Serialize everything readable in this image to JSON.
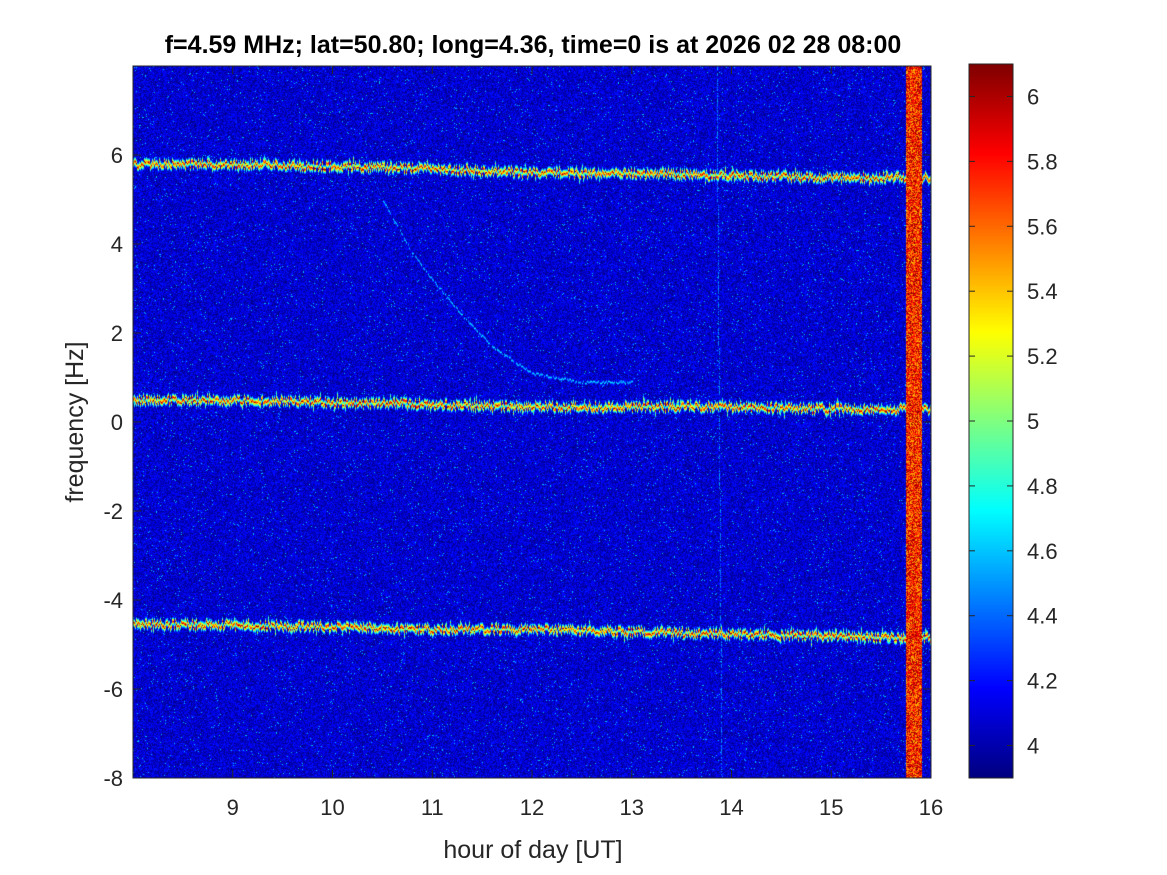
{
  "chart_data": {
    "type": "heatmap",
    "title": "f=4.59 MHz;  lat=50.80; long=4.36, time=0 is at 2026 02 28 08:00",
    "xlabel": "hour of day [UT]",
    "ylabel": "frequency [Hz]",
    "xlim": [
      8.0,
      16.0
    ],
    "ylim": [
      -8,
      8
    ],
    "x_ticks": [
      9,
      10,
      11,
      12,
      13,
      14,
      15,
      16
    ],
    "y_ticks": [
      -8,
      -6,
      -4,
      -2,
      0,
      2,
      4,
      6
    ],
    "colormap": "jet",
    "clim": [
      3.9,
      6.1
    ],
    "colorbar_ticks": [
      4,
      4.2,
      4.4,
      4.6,
      4.8,
      5,
      5.2,
      5.4,
      5.6,
      5.8,
      6
    ],
    "background_level": 4.0,
    "grid": false,
    "features": [
      {
        "kind": "horizontal-trace",
        "level": 6.0,
        "points": [
          [
            8.0,
            5.8
          ],
          [
            9.0,
            5.8
          ],
          [
            10.0,
            5.75
          ],
          [
            11.0,
            5.7
          ],
          [
            12.0,
            5.6
          ],
          [
            13.0,
            5.6
          ],
          [
            14.0,
            5.55
          ],
          [
            15.0,
            5.5
          ],
          [
            16.0,
            5.5
          ]
        ]
      },
      {
        "kind": "horizontal-trace",
        "level": 6.0,
        "points": [
          [
            8.0,
            0.5
          ],
          [
            9.0,
            0.5
          ],
          [
            10.0,
            0.45
          ],
          [
            11.0,
            0.4
          ],
          [
            12.0,
            0.35
          ],
          [
            13.0,
            0.35
          ],
          [
            14.0,
            0.35
          ],
          [
            15.0,
            0.3
          ],
          [
            16.0,
            0.3
          ]
        ]
      },
      {
        "kind": "horizontal-trace",
        "level": 6.0,
        "points": [
          [
            8.0,
            -4.55
          ],
          [
            9.0,
            -4.55
          ],
          [
            10.0,
            -4.6
          ],
          [
            11.0,
            -4.65
          ],
          [
            12.0,
            -4.65
          ],
          [
            13.0,
            -4.7
          ],
          [
            14.0,
            -4.75
          ],
          [
            15.0,
            -4.8
          ],
          [
            16.0,
            -4.85
          ]
        ]
      },
      {
        "kind": "doppler-trace",
        "level": 4.7,
        "points": [
          [
            10.5,
            5.0
          ],
          [
            10.8,
            3.8
          ],
          [
            11.0,
            3.2
          ],
          [
            11.3,
            2.4
          ],
          [
            11.6,
            1.7
          ],
          [
            12.0,
            1.1
          ],
          [
            12.5,
            0.9
          ],
          [
            13.0,
            0.9
          ]
        ]
      },
      {
        "kind": "faint-trace",
        "level": 4.35,
        "points": [
          [
            9.9,
            8.0
          ],
          [
            10.2,
            6.5
          ],
          [
            10.5,
            5.0
          ]
        ]
      },
      {
        "kind": "faint-vertical",
        "level": 4.35,
        "points": [
          [
            13.85,
            8.0
          ],
          [
            13.9,
            -8.0
          ]
        ]
      },
      {
        "kind": "broadband-burst",
        "level": 6.0,
        "x_range": [
          15.75,
          15.9
        ]
      }
    ]
  }
}
